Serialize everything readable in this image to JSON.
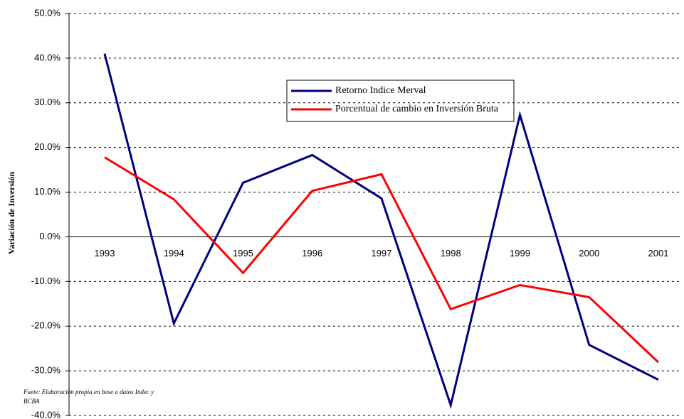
{
  "chart_data": {
    "type": "line",
    "y_label": "Variación de Inversión",
    "source": [
      "Fuete: Elaboración propia en base a datos Indec y",
      "BCBA"
    ],
    "categories": [
      "1993",
      "1994",
      "1995",
      "1996",
      "1997",
      "1998",
      "1999",
      "2000",
      "2001"
    ],
    "series": [
      {
        "name": "Retorno Indice Merval",
        "color": "#000080",
        "values": [
          41.0,
          -19.4,
          12.1,
          18.3,
          8.6,
          -37.7,
          27.3,
          -24.2,
          -32.0
        ]
      },
      {
        "name": "Porcentual de cambio en Inversión Bruta",
        "color": "#ff0000",
        "values": [
          17.8,
          8.4,
          -8.1,
          10.3,
          14.0,
          -16.2,
          -10.8,
          -13.5,
          -28.1
        ]
      }
    ],
    "ylim": [
      -40,
      50
    ],
    "yticks": [
      {
        "value": -40,
        "label": "-40.0%"
      },
      {
        "value": -30,
        "label": "-30.0%"
      },
      {
        "value": -20,
        "label": "-20.0%"
      },
      {
        "value": -10,
        "label": "-10.0%"
      },
      {
        "value": 0,
        "label": "0.0%"
      },
      {
        "value": 10,
        "label": "10.0%"
      },
      {
        "value": 20,
        "label": "20.0%"
      },
      {
        "value": 30,
        "label": "30.0%"
      },
      {
        "value": 40,
        "label": "40.0%"
      },
      {
        "value": 50,
        "label": "50.0%"
      }
    ],
    "grid": true
  }
}
